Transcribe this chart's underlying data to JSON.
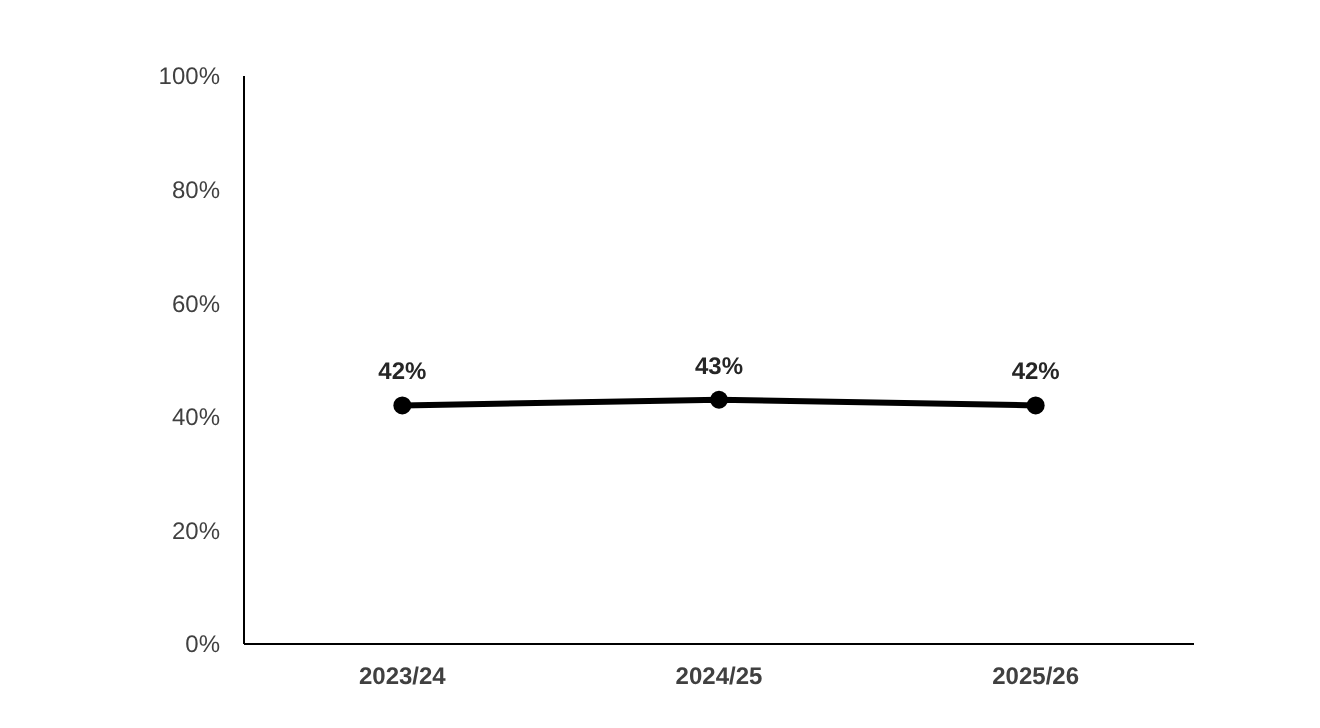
{
  "chart_data": {
    "type": "line",
    "categories": [
      "2023/24",
      "2024/25",
      "2025/26"
    ],
    "series": [
      {
        "color": "#000000",
        "values": [
          42,
          43,
          42
        ],
        "value_labels": [
          "42%",
          "43%",
          "42%"
        ]
      }
    ],
    "ylim": [
      0,
      100
    ],
    "yticks": [
      {
        "value": 0,
        "label": "0%"
      },
      {
        "value": 20,
        "label": "20%"
      },
      {
        "value": 40,
        "label": "40%"
      },
      {
        "value": 60,
        "label": "60%"
      },
      {
        "value": 80,
        "label": "80%"
      },
      {
        "value": 100,
        "label": "100%"
      }
    ],
    "grid": false,
    "marker": "circle",
    "line_style": "solid"
  }
}
